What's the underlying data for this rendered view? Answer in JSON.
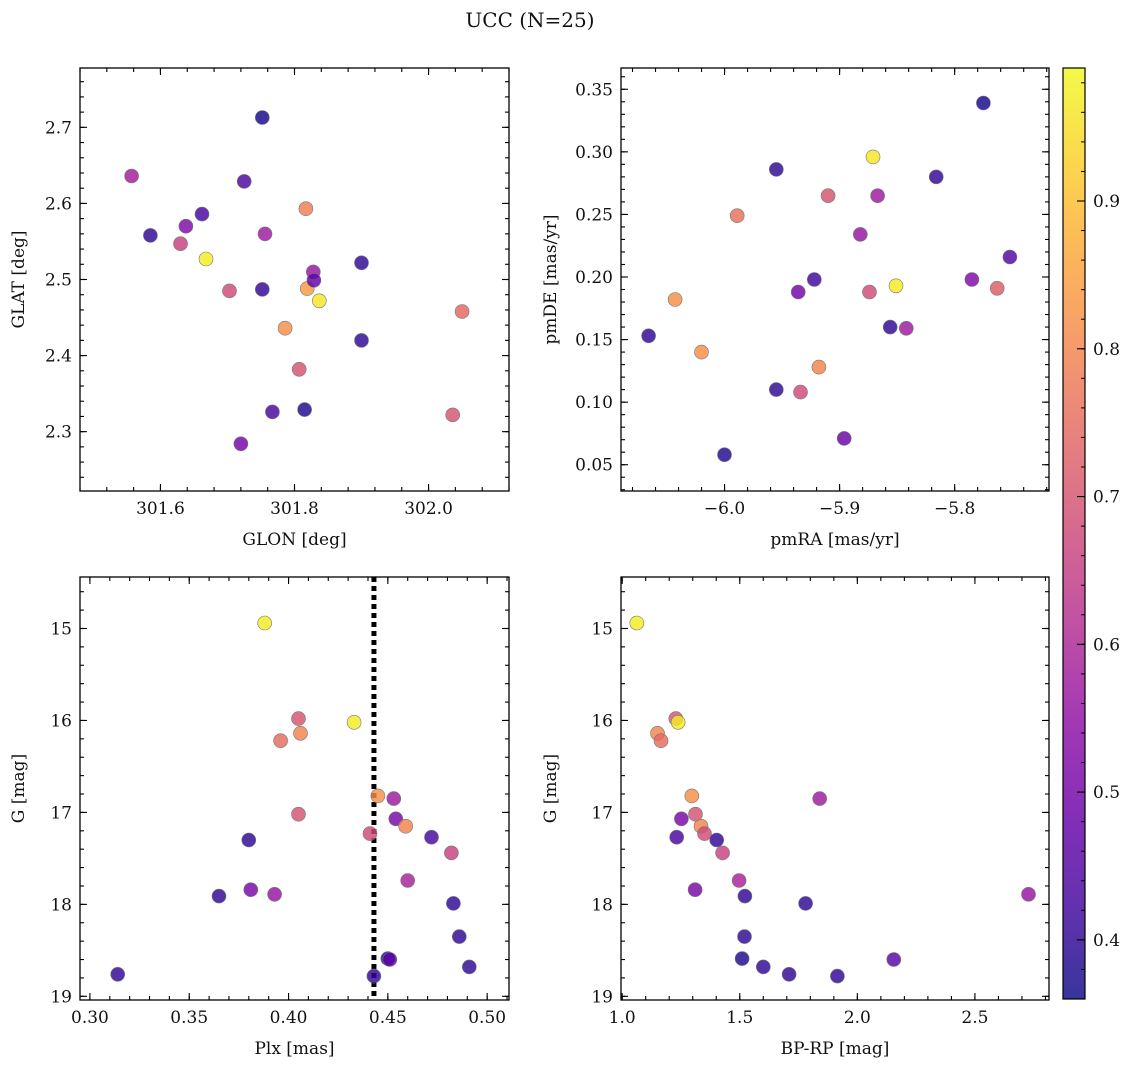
{
  "figure": {
    "title": "UCC (N=25)"
  },
  "colormap": {
    "name": "plasma",
    "vmin": 0.36,
    "vmax": 0.99,
    "ticks": [
      0.4,
      0.5,
      0.6,
      0.7,
      0.8,
      0.9
    ]
  },
  "chart_data": [
    {
      "type": "scatter",
      "xlabel": "GLON [deg]",
      "ylabel": "GLAT [deg]",
      "xlim": [
        301.48,
        302.12
      ],
      "ylim": [
        2.222,
        2.778
      ],
      "xticks": [
        301.6,
        301.8,
        302.0
      ],
      "yticks": [
        2.3,
        2.4,
        2.5,
        2.6,
        2.7
      ],
      "xtick_labels": [
        "301.6",
        "301.8",
        "302.0"
      ],
      "ytick_labels": [
        "2.3",
        "2.4",
        "2.5",
        "2.6",
        "2.7"
      ],
      "x_minor": 0.04,
      "y_minor": 0.02,
      "y_inverted": false,
      "points": [
        {
          "x": 301.557,
          "y": 2.636,
          "c": 0.58
        },
        {
          "x": 301.585,
          "y": 2.558,
          "c": 0.4
        },
        {
          "x": 301.63,
          "y": 2.547,
          "c": 0.66
        },
        {
          "x": 301.638,
          "y": 2.57,
          "c": 0.52
        },
        {
          "x": 301.662,
          "y": 2.586,
          "c": 0.43
        },
        {
          "x": 301.668,
          "y": 2.527,
          "c": 0.97
        },
        {
          "x": 301.703,
          "y": 2.485,
          "c": 0.68
        },
        {
          "x": 301.72,
          "y": 2.284,
          "c": 0.5
        },
        {
          "x": 301.725,
          "y": 2.629,
          "c": 0.44
        },
        {
          "x": 301.752,
          "y": 2.713,
          "c": 0.37
        },
        {
          "x": 301.752,
          "y": 2.487,
          "c": 0.4
        },
        {
          "x": 301.756,
          "y": 2.56,
          "c": 0.57
        },
        {
          "x": 301.767,
          "y": 2.326,
          "c": 0.43
        },
        {
          "x": 301.786,
          "y": 2.436,
          "c": 0.82
        },
        {
          "x": 301.807,
          "y": 2.382,
          "c": 0.7
        },
        {
          "x": 301.815,
          "y": 2.329,
          "c": 0.38
        },
        {
          "x": 301.817,
          "y": 2.593,
          "c": 0.79
        },
        {
          "x": 301.819,
          "y": 2.488,
          "c": 0.84
        },
        {
          "x": 301.828,
          "y": 2.51,
          "c": 0.56
        },
        {
          "x": 301.829,
          "y": 2.499,
          "c": 0.47
        },
        {
          "x": 301.837,
          "y": 2.472,
          "c": 0.96
        },
        {
          "x": 301.9,
          "y": 2.522,
          "c": 0.4
        },
        {
          "x": 301.9,
          "y": 2.42,
          "c": 0.4
        },
        {
          "x": 302.036,
          "y": 2.322,
          "c": 0.7
        },
        {
          "x": 302.05,
          "y": 2.458,
          "c": 0.74
        }
      ]
    },
    {
      "type": "scatter",
      "xlabel": "pmRA [mas/yr]",
      "ylabel": "pmDE [mas/yr]",
      "xlim": [
        -6.09,
        -5.718
      ],
      "ylim": [
        0.029,
        0.367
      ],
      "xticks": [
        -6.0,
        -5.9,
        -5.8
      ],
      "yticks": [
        0.05,
        0.1,
        0.15,
        0.2,
        0.25,
        0.3,
        0.35
      ],
      "xtick_labels": [
        "−6.0",
        "−5.9",
        "−5.8"
      ],
      "ytick_labels": [
        "0.05",
        "0.10",
        "0.15",
        "0.20",
        "0.25",
        "0.30",
        "0.35"
      ],
      "x_minor": 0.02,
      "y_minor": 0.01,
      "y_inverted": false,
      "points": [
        {
          "x": -6.066,
          "y": 0.153,
          "c": 0.4
        },
        {
          "x": -6.043,
          "y": 0.182,
          "c": 0.82
        },
        {
          "x": -6.02,
          "y": 0.14,
          "c": 0.82
        },
        {
          "x": -6.0,
          "y": 0.058,
          "c": 0.38
        },
        {
          "x": -5.989,
          "y": 0.249,
          "c": 0.76
        },
        {
          "x": -5.955,
          "y": 0.286,
          "c": 0.4
        },
        {
          "x": -5.955,
          "y": 0.11,
          "c": 0.4
        },
        {
          "x": -5.936,
          "y": 0.188,
          "c": 0.5
        },
        {
          "x": -5.934,
          "y": 0.108,
          "c": 0.68
        },
        {
          "x": -5.922,
          "y": 0.198,
          "c": 0.42
        },
        {
          "x": -5.918,
          "y": 0.128,
          "c": 0.8
        },
        {
          "x": -5.91,
          "y": 0.265,
          "c": 0.7
        },
        {
          "x": -5.896,
          "y": 0.071,
          "c": 0.48
        },
        {
          "x": -5.882,
          "y": 0.234,
          "c": 0.56
        },
        {
          "x": -5.874,
          "y": 0.188,
          "c": 0.68
        },
        {
          "x": -5.871,
          "y": 0.296,
          "c": 0.96
        },
        {
          "x": -5.867,
          "y": 0.265,
          "c": 0.57
        },
        {
          "x": -5.856,
          "y": 0.16,
          "c": 0.4
        },
        {
          "x": -5.851,
          "y": 0.193,
          "c": 0.97
        },
        {
          "x": -5.842,
          "y": 0.159,
          "c": 0.57
        },
        {
          "x": -5.816,
          "y": 0.28,
          "c": 0.4
        },
        {
          "x": -5.785,
          "y": 0.198,
          "c": 0.52
        },
        {
          "x": -5.775,
          "y": 0.339,
          "c": 0.37
        },
        {
          "x": -5.763,
          "y": 0.191,
          "c": 0.72
        },
        {
          "x": -5.752,
          "y": 0.216,
          "c": 0.45
        }
      ]
    },
    {
      "type": "scatter",
      "xlabel": "Plx [mas]",
      "ylabel": "G [mag]",
      "xlim": [
        0.295,
        0.511
      ],
      "ylim": [
        14.44,
        19.04
      ],
      "xticks": [
        0.3,
        0.35,
        0.4,
        0.45,
        0.5
      ],
      "yticks": [
        15,
        16,
        17,
        18,
        19
      ],
      "xtick_labels": [
        "0.30",
        "0.35",
        "0.40",
        "0.45",
        "0.50"
      ],
      "ytick_labels": [
        "15",
        "16",
        "17",
        "18",
        "19"
      ],
      "x_minor": 0.01,
      "y_minor": 0.2,
      "y_inverted": true,
      "vline": {
        "x": 0.443,
        "style": "dotted",
        "color": "#000000"
      },
      "points": [
        {
          "x": 0.314,
          "y": 18.76,
          "c": 0.4
        },
        {
          "x": 0.365,
          "y": 17.91,
          "c": 0.4
        },
        {
          "x": 0.38,
          "y": 17.3,
          "c": 0.4
        },
        {
          "x": 0.381,
          "y": 17.84,
          "c": 0.51
        },
        {
          "x": 0.388,
          "y": 14.94,
          "c": 0.97
        },
        {
          "x": 0.393,
          "y": 17.89,
          "c": 0.56
        },
        {
          "x": 0.396,
          "y": 16.22,
          "c": 0.75
        },
        {
          "x": 0.405,
          "y": 15.98,
          "c": 0.7
        },
        {
          "x": 0.405,
          "y": 17.02,
          "c": 0.7
        },
        {
          "x": 0.406,
          "y": 16.14,
          "c": 0.8
        },
        {
          "x": 0.433,
          "y": 16.02,
          "c": 0.97
        },
        {
          "x": 0.441,
          "y": 17.23,
          "c": 0.68
        },
        {
          "x": 0.443,
          "y": 18.78,
          "c": 0.4
        },
        {
          "x": 0.445,
          "y": 16.82,
          "c": 0.82
        },
        {
          "x": 0.45,
          "y": 18.59,
          "c": 0.38
        },
        {
          "x": 0.451,
          "y": 18.6,
          "c": 0.46
        },
        {
          "x": 0.453,
          "y": 16.85,
          "c": 0.57
        },
        {
          "x": 0.454,
          "y": 17.07,
          "c": 0.51
        },
        {
          "x": 0.459,
          "y": 17.15,
          "c": 0.8
        },
        {
          "x": 0.46,
          "y": 17.74,
          "c": 0.59
        },
        {
          "x": 0.472,
          "y": 17.27,
          "c": 0.43
        },
        {
          "x": 0.482,
          "y": 17.44,
          "c": 0.66
        },
        {
          "x": 0.483,
          "y": 17.99,
          "c": 0.4
        },
        {
          "x": 0.486,
          "y": 18.35,
          "c": 0.4
        },
        {
          "x": 0.491,
          "y": 18.68,
          "c": 0.4
        }
      ]
    },
    {
      "type": "scatter",
      "xlabel": "BP-RP [mag]",
      "ylabel": "G [mag]",
      "xlim": [
        0.995,
        2.815
      ],
      "ylim": [
        14.44,
        19.04
      ],
      "xticks": [
        1.0,
        1.5,
        2.0,
        2.5
      ],
      "yticks": [
        15,
        16,
        17,
        18,
        19
      ],
      "xtick_labels": [
        "1.0",
        "1.5",
        "2.0",
        "2.5"
      ],
      "ytick_labels": [
        "15",
        "16",
        "17",
        "18",
        "19"
      ],
      "x_minor": 0.1,
      "y_minor": 0.2,
      "y_inverted": true,
      "points": [
        {
          "x": 1.062,
          "y": 14.94,
          "c": 0.97
        },
        {
          "x": 1.15,
          "y": 16.14,
          "c": 0.8
        },
        {
          "x": 1.165,
          "y": 16.22,
          "c": 0.75
        },
        {
          "x": 1.228,
          "y": 15.98,
          "c": 0.7
        },
        {
          "x": 1.238,
          "y": 16.02,
          "c": 0.97
        },
        {
          "x": 1.232,
          "y": 17.27,
          "c": 0.43
        },
        {
          "x": 1.252,
          "y": 17.07,
          "c": 0.51
        },
        {
          "x": 1.296,
          "y": 16.82,
          "c": 0.82
        },
        {
          "x": 1.312,
          "y": 17.02,
          "c": 0.7
        },
        {
          "x": 1.335,
          "y": 17.15,
          "c": 0.8
        },
        {
          "x": 1.35,
          "y": 17.23,
          "c": 0.68
        },
        {
          "x": 1.31,
          "y": 17.84,
          "c": 0.51
        },
        {
          "x": 1.402,
          "y": 17.3,
          "c": 0.4
        },
        {
          "x": 1.427,
          "y": 17.44,
          "c": 0.66
        },
        {
          "x": 1.497,
          "y": 17.74,
          "c": 0.59
        },
        {
          "x": 1.522,
          "y": 17.91,
          "c": 0.4
        },
        {
          "x": 1.52,
          "y": 18.35,
          "c": 0.4
        },
        {
          "x": 1.51,
          "y": 18.59,
          "c": 0.38
        },
        {
          "x": 1.6,
          "y": 18.68,
          "c": 0.4
        },
        {
          "x": 1.71,
          "y": 18.76,
          "c": 0.4
        },
        {
          "x": 1.78,
          "y": 17.99,
          "c": 0.4
        },
        {
          "x": 1.84,
          "y": 16.85,
          "c": 0.57
        },
        {
          "x": 1.915,
          "y": 18.78,
          "c": 0.4
        },
        {
          "x": 2.155,
          "y": 18.6,
          "c": 0.46
        },
        {
          "x": 2.728,
          "y": 17.89,
          "c": 0.56
        }
      ]
    }
  ]
}
